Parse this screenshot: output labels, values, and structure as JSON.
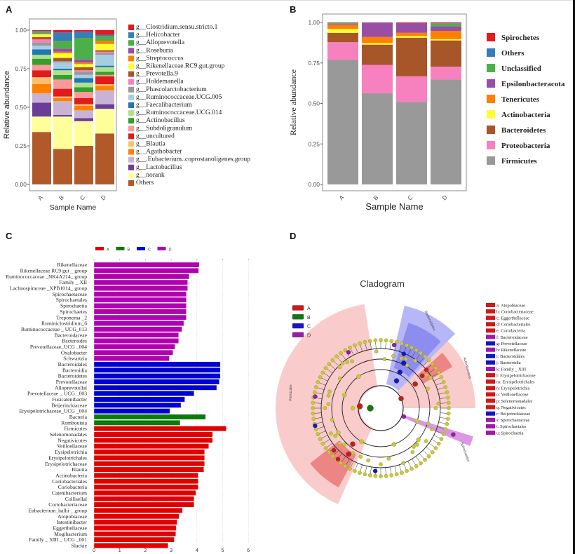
{
  "panels": {
    "a": "A",
    "b": "B",
    "c": "C",
    "d": "D"
  },
  "chart_data": [
    {
      "type": "bar",
      "stacked": true,
      "title": "",
      "xlabel": "Sample Name",
      "ylabel": "Relative abundance",
      "categories": [
        "A",
        "B",
        "C",
        "D"
      ],
      "ylim": [
        0,
        1
      ],
      "yticks": [
        "0.00",
        "0.25",
        "0.50",
        "0.75",
        "1.00"
      ],
      "legend_position": "right",
      "series": [
        {
          "name": "g__Clostridium.sensu.stricto.1",
          "color": "#E41A1C",
          "values": [
            0.005,
            0.015,
            0.01,
            0.03
          ]
        },
        {
          "name": "g__Helicobacter",
          "color": "#377EB8",
          "values": [
            0.005,
            0.055,
            0.04,
            0.01
          ]
        },
        {
          "name": "g__Alloprevotella",
          "color": "#4DAF4A",
          "values": [
            0.01,
            0.05,
            0.14,
            0.03
          ]
        },
        {
          "name": "g__Roseburia",
          "color": "#984EA3",
          "values": [
            0.005,
            0.02,
            0.02,
            0.0
          ]
        },
        {
          "name": "g__Streptococcus",
          "color": "#FF7F00",
          "values": [
            0.0,
            0.01,
            0.01,
            0.02
          ]
        },
        {
          "name": "g__Rikenellaceae.RC9.gut.group",
          "color": "#FFFF33",
          "values": [
            0.02,
            0.03,
            0.02,
            0.04
          ]
        },
        {
          "name": "g__Prevotella.9",
          "color": "#A65628",
          "values": [
            0.015,
            0.02,
            0.02,
            0.01
          ]
        },
        {
          "name": "g__Holdemanella",
          "color": "#F781BF",
          "values": [
            0.02,
            0.0,
            0.01,
            0.01
          ]
        },
        {
          "name": "g__Phascolarctobacterium",
          "color": "#999999",
          "values": [
            0.02,
            0.01,
            0.02,
            0.01
          ]
        },
        {
          "name": "g__Ruminococcaceae.UCG.005",
          "color": "#A6CEE3",
          "values": [
            0.025,
            0.04,
            0.02,
            0.07
          ]
        },
        {
          "name": "g__Faecalibacterium",
          "color": "#1F78B4",
          "values": [
            0.035,
            0.01,
            0.03,
            0.01
          ]
        },
        {
          "name": "g__Ruminococcaceae.UCG.014",
          "color": "#B2DF8A",
          "values": [
            0.025,
            0.03,
            0.03,
            0.03
          ]
        },
        {
          "name": "g__Actinobacillus",
          "color": "#33A02C",
          "values": [
            0.04,
            0.03,
            0.03,
            0.02
          ]
        },
        {
          "name": "g__Subdoligranulum",
          "color": "#FB9A99",
          "values": [
            0.035,
            0.06,
            0.04,
            0.01
          ]
        },
        {
          "name": "g__uncultured",
          "color": "#E31A1C",
          "values": [
            0.045,
            0.05,
            0.04,
            0.05
          ]
        },
        {
          "name": "g__Blautia",
          "color": "#FDBF6F",
          "values": [
            0.045,
            0.01,
            0.01,
            0.01
          ]
        },
        {
          "name": "g__Agathobacter",
          "color": "#FF7F00",
          "values": [
            0.06,
            0.02,
            0.03,
            0.03
          ]
        },
        {
          "name": "g__.Eubacterium..coprostanoligenes.group",
          "color": "#CAB2D6",
          "values": [
            0.06,
            0.09,
            0.05,
            0.09
          ]
        },
        {
          "name": "g__Lactobacillus",
          "color": "#6A3D9A",
          "values": [
            0.09,
            0.01,
            0.02,
            0.03
          ]
        },
        {
          "name": "g__norank",
          "color": "#FFFF99",
          "values": [
            0.1,
            0.21,
            0.16,
            0.16
          ]
        },
        {
          "name": "Others",
          "color": "#B15928",
          "values": [
            0.34,
            0.23,
            0.25,
            0.33
          ]
        }
      ]
    },
    {
      "type": "bar",
      "stacked": true,
      "title": "",
      "xlabel": "Sample Name",
      "ylabel": "Relative abundance",
      "categories": [
        "A",
        "B",
        "C",
        "D"
      ],
      "ylim": [
        0,
        1
      ],
      "yticks": [
        "0.00",
        "0.25",
        "0.50",
        "0.75",
        "1.00"
      ],
      "legend_position": "right",
      "series": [
        {
          "name": "Spirochetes",
          "color": "#E41A1C",
          "values": [
            0.002,
            0.0,
            0.004,
            0.005
          ]
        },
        {
          "name": "Others",
          "color": "#377EB8",
          "values": [
            0.003,
            0.0,
            0.0,
            0.003
          ]
        },
        {
          "name": "Unclassified",
          "color": "#4DAF4A",
          "values": [
            0.005,
            0.0,
            0.0,
            0.015
          ]
        },
        {
          "name": "Epsilonbacteracota",
          "color": "#984EA3",
          "values": [
            0.005,
            0.09,
            0.06,
            0.03
          ]
        },
        {
          "name": "Tenericutes",
          "color": "#FF7F00",
          "values": [
            0.025,
            0.037,
            0.02,
            0.05
          ]
        },
        {
          "name": "Actinobacteria",
          "color": "#FFFF33",
          "values": [
            0.025,
            0.01,
            0.01,
            0.008
          ]
        },
        {
          "name": "Bacteroidetes",
          "color": "#A65628",
          "values": [
            0.057,
            0.125,
            0.238,
            0.162
          ]
        },
        {
          "name": "Proteobacteria",
          "color": "#F781BF",
          "values": [
            0.108,
            0.174,
            0.158,
            0.08
          ]
        },
        {
          "name": "Firmicutes",
          "color": "#999999",
          "values": [
            0.77,
            0.564,
            0.51,
            0.647
          ]
        }
      ]
    },
    {
      "type": "bar",
      "orientation": "horizontal",
      "title": "",
      "xlim": [
        0,
        6
      ],
      "xticks": [
        "0",
        "1",
        "2",
        "3",
        "4",
        "5",
        "6"
      ],
      "grid": true,
      "legend_position": "top",
      "groups": [
        {
          "name": "A",
          "color": "#E00000"
        },
        {
          "name": "B",
          "color": "#0A7A0A"
        },
        {
          "name": "C",
          "color": "#0000D0"
        },
        {
          "name": "D",
          "color": "#B000B0"
        }
      ],
      "bars": [
        {
          "label": "Rikenellaceae",
          "group": "D",
          "value": 4.09
        },
        {
          "label": "Rikenellaceae RC9 gut _ group",
          "group": "D",
          "value": 4.07
        },
        {
          "label": "Ruminococcaceae _NK4A214_ group",
          "group": "D",
          "value": 3.7
        },
        {
          "label": "Family _ XII",
          "group": "D",
          "value": 3.64
        },
        {
          "label": "Lachnospiraceae _XPB1014_ group",
          "group": "D",
          "value": 3.64
        },
        {
          "label": "Spirochaetaceae",
          "group": "D",
          "value": 3.59
        },
        {
          "label": "Spirochaetales",
          "group": "D",
          "value": 3.59
        },
        {
          "label": "Spirochaetia",
          "group": "D",
          "value": 3.59
        },
        {
          "label": "Spirochaetes",
          "group": "D",
          "value": 3.59
        },
        {
          "label": "Treponema _2",
          "group": "D",
          "value": 3.59
        },
        {
          "label": "Ruminiclostridium_6",
          "group": "D",
          "value": 3.49
        },
        {
          "label": "Ruminococcaceae _ UCG_013",
          "group": "D",
          "value": 3.42
        },
        {
          "label": "Bacteroidaceae",
          "group": "D",
          "value": 3.29
        },
        {
          "label": "Bacteroides",
          "group": "D",
          "value": 3.29
        },
        {
          "label": "Prevotellaceae_UCG _004",
          "group": "D",
          "value": 3.15
        },
        {
          "label": "Oxalobacter",
          "group": "D",
          "value": 3.07
        },
        {
          "label": "Schwartzia",
          "group": "D",
          "value": 2.93
        },
        {
          "label": "Bacteroidales",
          "group": "C",
          "value": 4.91
        },
        {
          "label": "Bacteroidia",
          "group": "C",
          "value": 4.91
        },
        {
          "label": "Bacteroidetes",
          "group": "C",
          "value": 4.91
        },
        {
          "label": "Prevotellaceae",
          "group": "C",
          "value": 4.87
        },
        {
          "label": "Alloprevotellal",
          "group": "C",
          "value": 4.77
        },
        {
          "label": "Prevotellaceae _ UCG _003",
          "group": "C",
          "value": 3.89
        },
        {
          "label": "Fusicatenibacter",
          "group": "C",
          "value": 3.53
        },
        {
          "label": "Beijerinckiaceae",
          "group": "C",
          "value": 3.38
        },
        {
          "label": "Erysipelotrichaceae_UCG _004",
          "group": "C",
          "value": 2.95
        },
        {
          "label": "Bacteria",
          "group": "B",
          "value": 4.34
        },
        {
          "label": "Romboutsia",
          "group": "B",
          "value": 3.35
        },
        {
          "label": "Firmicutes",
          "group": "A",
          "value": 5.14
        },
        {
          "label": "Selenomonadales",
          "group": "A",
          "value": 4.61
        },
        {
          "label": "Negativicutes",
          "group": "A",
          "value": 4.61
        },
        {
          "label": "Veilloellaceae",
          "group": "A",
          "value": 4.46
        },
        {
          "label": "Eysipelotrichia",
          "group": "A",
          "value": 4.3
        },
        {
          "label": "Erysipelotrichales",
          "group": "A",
          "value": 4.3
        },
        {
          "label": "Erysipelotrichaceae",
          "group": "A",
          "value": 4.3
        },
        {
          "label": "Blautia",
          "group": "A",
          "value": 4.27
        },
        {
          "label": "Actinobacteria",
          "group": "A",
          "value": 4.05
        },
        {
          "label": "Coriobacteriales",
          "group": "A",
          "value": 4.05
        },
        {
          "label": "Coriobacteria",
          "group": "A",
          "value": 4.05
        },
        {
          "label": "Catenibacterium",
          "group": "A",
          "value": 3.96
        },
        {
          "label": "Collisellal",
          "group": "A",
          "value": 3.89
        },
        {
          "label": "Coriobacteriaceae",
          "group": "A",
          "value": 3.89
        },
        {
          "label": "Eubacterium_hallii _ group",
          "group": "A",
          "value": 3.44
        },
        {
          "label": "Atopobiaceae",
          "group": "A",
          "value": 3.31
        },
        {
          "label": "Intestinibacter",
          "group": "A",
          "value": 3.23
        },
        {
          "label": "Eggerthellaceae",
          "group": "A",
          "value": 3.2
        },
        {
          "label": "Mogibacterium",
          "group": "A",
          "value": 3.18
        },
        {
          "label": "Family _ XIII _ UCG _001",
          "group": "A",
          "value": 3.12
        },
        {
          "label": "Slackie",
          "group": "A",
          "value": 2.88
        }
      ]
    },
    {
      "type": "cladogram",
      "title": "Cladogram",
      "groups": [
        {
          "name": "A",
          "color": "#D01818"
        },
        {
          "name": "B",
          "color": "#127A12"
        },
        {
          "name": "C",
          "color": "#1515C8"
        },
        {
          "name": "D",
          "color": "#A018A8"
        }
      ],
      "clades": [
        {
          "label": "Firmicutes",
          "group": "A"
        },
        {
          "label": "Bacteroidetes",
          "group": "C"
        },
        {
          "label": "Actinobacteria",
          "group": "A"
        },
        {
          "label": "Spirochaetes",
          "group": "D"
        }
      ],
      "legend_position": "right",
      "taxa": [
        {
          "label": "a: Atopobiaceae",
          "group": "A"
        },
        {
          "label": "b: Coriobacteriaceae",
          "group": "A"
        },
        {
          "label": "c: Eggerthellaceae",
          "group": "A"
        },
        {
          "label": "d: Coriobacteriales",
          "group": "A"
        },
        {
          "label": "e: Coriobacteria",
          "group": "A"
        },
        {
          "label": "f: Bacteroidaceae",
          "group": "D"
        },
        {
          "label": "g: Prevotellaceae",
          "group": "C"
        },
        {
          "label": "h: Rikenellaceae",
          "group": "D"
        },
        {
          "label": "i: Bacteroidales",
          "group": "C"
        },
        {
          "label": "j: Bacteroidia",
          "group": "C"
        },
        {
          "label": "k: Family _ XIII",
          "group": "D"
        },
        {
          "label": "l: Erysipelotrichaceae",
          "group": "A"
        },
        {
          "label": "m: Erysipelotrichales",
          "group": "A"
        },
        {
          "label": "n: Erysipelotrichia",
          "group": "A"
        },
        {
          "label": "o: Veillonellaceae",
          "group": "A"
        },
        {
          "label": "p: Selenomonadales",
          "group": "A"
        },
        {
          "label": "q: Negativicutes",
          "group": "A"
        },
        {
          "label": "r: Beijerinckiaceae",
          "group": "C"
        },
        {
          "label": "s: Spirochaetaceae",
          "group": "D"
        },
        {
          "label": "t: Spirochaetales",
          "group": "D"
        },
        {
          "label": "u: Spirochaetia",
          "group": "D"
        }
      ]
    }
  ]
}
